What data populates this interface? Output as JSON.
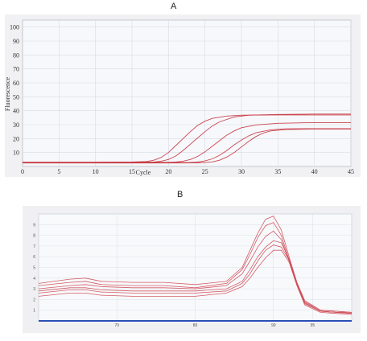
{
  "figure": {
    "panel_a_letter": "A",
    "panel_b_letter": "B"
  },
  "chart_data": [
    {
      "panel": "A",
      "type": "line",
      "xlabel": "Cycle",
      "ylabel": "Fluorescence",
      "xlim": [
        0,
        45
      ],
      "ylim": [
        0,
        105
      ],
      "xticks": [
        "0",
        "5",
        "10",
        "15",
        "20",
        "25",
        "30",
        "35",
        "40",
        "45"
      ],
      "yticks": [
        "10",
        "20",
        "30",
        "40",
        "50",
        "60",
        "70",
        "80",
        "90",
        "100"
      ],
      "grid": true,
      "line_color": "#c4333d",
      "series": [
        {
          "x": [
            0,
            5,
            10,
            15,
            17,
            18,
            19,
            20,
            21,
            22,
            23,
            24,
            25,
            26,
            28,
            30,
            35,
            40,
            45
          ],
          "y": [
            3,
            3,
            3,
            3.2,
            3.6,
            4.5,
            6.5,
            10,
            15,
            20,
            25,
            29.5,
            32.5,
            34.5,
            36.2,
            36.8,
            37,
            37,
            37
          ]
        },
        {
          "x": [
            0,
            5,
            10,
            15,
            18,
            19,
            20,
            21,
            22,
            23,
            24,
            25,
            26,
            27,
            29,
            31,
            35,
            40,
            45
          ],
          "y": [
            3,
            3,
            3,
            3,
            3.2,
            3.8,
            5,
            7.5,
            11.5,
            16,
            20.5,
            25,
            29,
            32,
            35.5,
            36.8,
            37.3,
            37.6,
            37.6
          ]
        },
        {
          "x": [
            0,
            5,
            10,
            15,
            20,
            21,
            22,
            23,
            24,
            25,
            26,
            27,
            28,
            29,
            30,
            32,
            35,
            40,
            45
          ],
          "y": [
            3,
            3,
            3,
            3,
            3,
            3.2,
            3.8,
            5,
            7.2,
            10.5,
            14.5,
            18.5,
            22.5,
            25.5,
            27.8,
            29.8,
            31,
            31.5,
            31.5
          ]
        },
        {
          "x": [
            0,
            5,
            10,
            15,
            20,
            23,
            24,
            25,
            26,
            27,
            28,
            29,
            30,
            31,
            32,
            34,
            36,
            40,
            45
          ],
          "y": [
            2.8,
            2.8,
            2.8,
            2.8,
            2.8,
            2.9,
            3.2,
            4,
            5.5,
            8,
            11.5,
            15.5,
            19,
            22,
            24.2,
            26.3,
            27,
            27.2,
            27.2
          ]
        },
        {
          "x": [
            0,
            5,
            10,
            15,
            20,
            24,
            25,
            26,
            27,
            28,
            29,
            30,
            31,
            32,
            33,
            34,
            36,
            40,
            45
          ],
          "y": [
            2.5,
            2.5,
            2.5,
            2.5,
            2.5,
            2.6,
            2.8,
            3.3,
            4.5,
            6.8,
            10,
            14,
            18,
            21.5,
            24,
            25.5,
            26.5,
            26.9,
            26.9
          ]
        }
      ]
    },
    {
      "panel": "B",
      "type": "line",
      "xlim": [
        60,
        100
      ],
      "ylim": [
        0,
        10
      ],
      "xticks": [
        "70",
        "80",
        "90",
        "95"
      ],
      "yticks": [
        "1",
        "2",
        "3",
        "4",
        "5",
        "6",
        "7",
        "8",
        "9"
      ],
      "grid": true,
      "line_color": "#cf4a55",
      "baseline_color": "#2a4fb5",
      "series": [
        {
          "x": [
            60,
            64,
            66,
            68,
            72,
            76,
            80,
            84,
            86,
            87,
            88,
            89,
            90,
            91,
            92,
            93,
            94,
            96,
            98,
            100
          ],
          "y": [
            3.5,
            3.9,
            4.0,
            3.7,
            3.6,
            3.6,
            3.4,
            3.7,
            5.0,
            6.6,
            8.2,
            9.5,
            9.8,
            8.5,
            6.0,
            3.6,
            1.9,
            1.0,
            0.9,
            0.8
          ]
        },
        {
          "x": [
            60,
            64,
            66,
            68,
            72,
            76,
            80,
            84,
            86,
            87,
            88,
            89,
            90,
            91,
            92,
            93,
            94,
            96,
            98,
            100
          ],
          "y": [
            3.3,
            3.6,
            3.7,
            3.4,
            3.3,
            3.3,
            3.1,
            3.5,
            4.8,
            6.2,
            7.8,
            8.9,
            9.2,
            8.0,
            5.7,
            3.5,
            1.8,
            1.0,
            0.9,
            0.8
          ]
        },
        {
          "x": [
            60,
            64,
            66,
            68,
            72,
            76,
            80,
            84,
            86,
            87,
            88,
            89,
            90,
            91,
            92,
            93,
            94,
            96,
            98,
            100
          ],
          "y": [
            3.0,
            3.3,
            3.4,
            3.2,
            3.1,
            3.1,
            3.0,
            3.3,
            4.4,
            5.6,
            6.9,
            7.9,
            8.4,
            7.6,
            5.6,
            3.4,
            1.7,
            0.9,
            0.8,
            0.8
          ]
        },
        {
          "x": [
            60,
            64,
            66,
            68,
            72,
            76,
            80,
            84,
            86,
            87,
            88,
            89,
            90,
            91,
            92,
            93,
            94,
            96,
            98,
            100
          ],
          "y": [
            2.8,
            3.1,
            3.1,
            2.9,
            2.8,
            2.8,
            2.8,
            3.0,
            3.7,
            4.8,
            6.0,
            6.9,
            7.5,
            7.3,
            5.8,
            3.6,
            1.7,
            0.9,
            0.8,
            0.7
          ]
        },
        {
          "x": [
            60,
            64,
            66,
            68,
            72,
            76,
            80,
            84,
            86,
            87,
            88,
            89,
            90,
            91,
            92,
            93,
            94,
            96,
            98,
            100
          ],
          "y": [
            2.6,
            2.9,
            2.9,
            2.7,
            2.6,
            2.6,
            2.6,
            2.8,
            3.5,
            4.4,
            5.6,
            6.6,
            7.1,
            6.9,
            5.7,
            3.5,
            1.6,
            0.9,
            0.8,
            0.7
          ]
        },
        {
          "x": [
            60,
            64,
            66,
            68,
            72,
            76,
            80,
            84,
            86,
            87,
            88,
            89,
            90,
            91,
            92,
            93,
            94,
            96,
            98,
            100
          ],
          "y": [
            2.3,
            2.6,
            2.6,
            2.4,
            2.3,
            2.3,
            2.3,
            2.6,
            3.2,
            4.0,
            5.0,
            5.9,
            6.6,
            6.6,
            5.5,
            3.3,
            1.5,
            0.8,
            0.7,
            0.6
          ]
        }
      ]
    }
  ]
}
